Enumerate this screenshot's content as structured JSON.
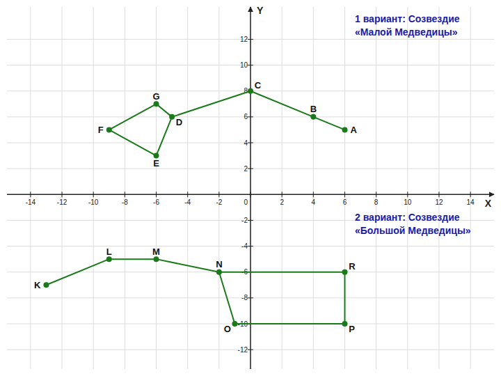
{
  "chart_data": {
    "type": "scatter",
    "x_label": "X",
    "y_label": "Y",
    "annotations": [
      "1 вариант: Созвездие\n«Малой Медведицы»",
      "2 вариант: Созвездие\n«Большой Медведицы»"
    ],
    "xlim": [
      -15.5,
      15.5
    ],
    "ylim": [
      -13.5,
      14.5
    ],
    "xticks": [
      -14,
      -12,
      -10,
      -8,
      -6,
      -4,
      -2,
      0,
      2,
      4,
      6,
      8,
      10,
      12,
      14
    ],
    "yticks": [
      -12,
      -10,
      -8,
      -6,
      -4,
      -2,
      2,
      4,
      6,
      8,
      10,
      12
    ],
    "grid": true,
    "series": [
      {
        "point_labels": [
          "A",
          "B",
          "C",
          "D",
          "E",
          "F",
          "G"
        ],
        "x": [
          6,
          4,
          0,
          -5,
          -6,
          -9,
          -6
        ],
        "y": [
          5,
          6,
          8,
          6,
          3,
          5,
          7
        ],
        "segments": [
          [
            "A",
            "B"
          ],
          [
            "B",
            "C"
          ],
          [
            "C",
            "D"
          ],
          [
            "D",
            "G"
          ],
          [
            "G",
            "F"
          ],
          [
            "F",
            "E"
          ],
          [
            "E",
            "D"
          ]
        ],
        "color": "#1a7a1a",
        "marker": "circle",
        "line_style": "solid"
      },
      {
        "point_labels": [
          "K",
          "L",
          "M",
          "N",
          "O",
          "P",
          "R"
        ],
        "x": [
          -13,
          -9,
          -6,
          -2,
          -1,
          6,
          6
        ],
        "y": [
          -7,
          -5,
          -5,
          -6,
          -10,
          -10,
          -6
        ],
        "segments": [
          [
            "K",
            "L"
          ],
          [
            "L",
            "M"
          ],
          [
            "M",
            "N"
          ],
          [
            "N",
            "O"
          ],
          [
            "O",
            "P"
          ],
          [
            "P",
            "R"
          ],
          [
            "R",
            "N"
          ]
        ],
        "color": "#1a7a1a",
        "marker": "circle",
        "line_style": "solid"
      }
    ]
  }
}
